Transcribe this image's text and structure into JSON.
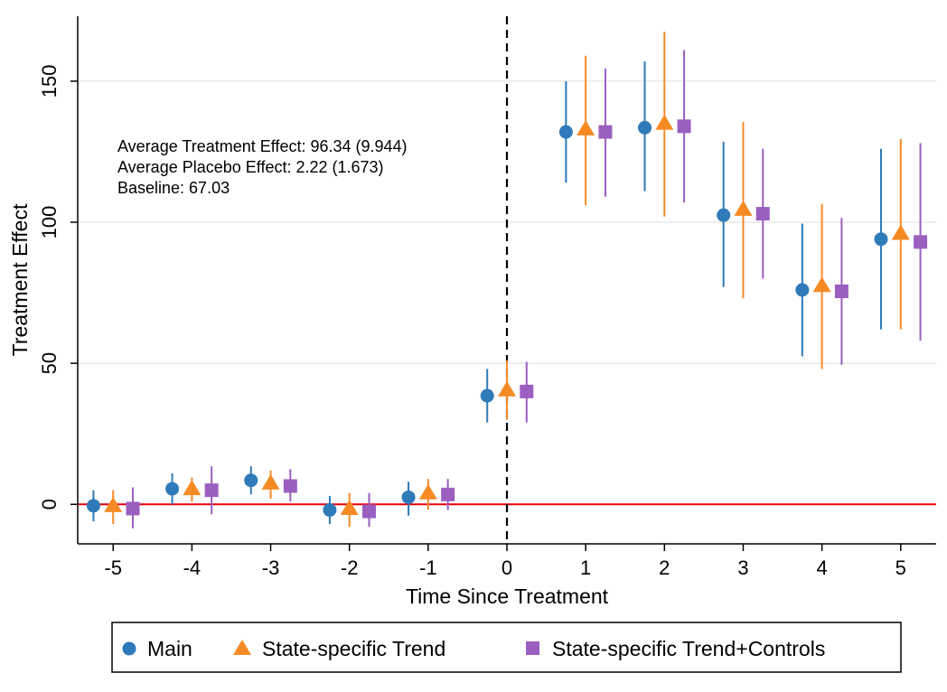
{
  "chart_data": {
    "type": "scatter",
    "xlabel": "Time Since Treatment",
    "ylabel": "Treatment Effect",
    "xlim": [
      -5.45,
      5.45
    ],
    "ylim": [
      -14,
      173
    ],
    "x_ticks": [
      "-5",
      "-4",
      "-3",
      "-2",
      "-1",
      "0",
      "1",
      "2",
      "3",
      "4",
      "5"
    ],
    "y_ticks": [
      "0",
      "50",
      "100",
      "150"
    ],
    "grid": "horizontal",
    "reference_hline": {
      "y": 0,
      "color": "#e8000b"
    },
    "reference_vline": {
      "x": 0,
      "style": "dashed"
    },
    "annotations": [
      "Average Treatment Effect:  96.34 (9.944)",
      "Average Placebo Effect:  2.22 (1.673)",
      "Baseline:  67.03"
    ],
    "legend_position": "bottom",
    "series": [
      {
        "name": "Main",
        "marker": "circle",
        "color": "#2f7ab8",
        "points": [
          {
            "x": -5.25,
            "y": -0.5,
            "lo": -6,
            "hi": 5
          },
          {
            "x": -4.25,
            "y": 5.5,
            "lo": 0,
            "hi": 11
          },
          {
            "x": -3.25,
            "y": 8.5,
            "lo": 3.5,
            "hi": 13.5
          },
          {
            "x": -2.25,
            "y": -2,
            "lo": -7,
            "hi": 3
          },
          {
            "x": -1.25,
            "y": 2.5,
            "lo": -4,
            "hi": 8
          },
          {
            "x": -0.25,
            "y": 38.5,
            "lo": 29,
            "hi": 48
          },
          {
            "x": 0.75,
            "y": 132,
            "lo": 114,
            "hi": 150
          },
          {
            "x": 1.75,
            "y": 133.5,
            "lo": 111,
            "hi": 157
          },
          {
            "x": 2.75,
            "y": 102.5,
            "lo": 77,
            "hi": 128.5
          },
          {
            "x": 3.75,
            "y": 76,
            "lo": 52.5,
            "hi": 99.5
          },
          {
            "x": 4.75,
            "y": 94,
            "lo": 62,
            "hi": 126
          }
        ]
      },
      {
        "name": "State-specific Trend",
        "marker": "triangle",
        "color": "#f58a24",
        "points": [
          {
            "x": -5,
            "y": -0.5,
            "lo": -7,
            "hi": 5
          },
          {
            "x": -4,
            "y": 5.5,
            "lo": 1,
            "hi": 9.5
          },
          {
            "x": -3,
            "y": 7.5,
            "lo": 2,
            "hi": 12
          },
          {
            "x": -2,
            "y": -1.5,
            "lo": -8,
            "hi": 4
          },
          {
            "x": -1,
            "y": 4,
            "lo": -2,
            "hi": 9
          },
          {
            "x": 0,
            "y": 40.5,
            "lo": 30,
            "hi": 51
          },
          {
            "x": 1,
            "y": 133,
            "lo": 106,
            "hi": 159
          },
          {
            "x": 2,
            "y": 135,
            "lo": 102,
            "hi": 167.5
          },
          {
            "x": 3,
            "y": 104.5,
            "lo": 73,
            "hi": 135.5
          },
          {
            "x": 4,
            "y": 77.5,
            "lo": 48,
            "hi": 106.5
          },
          {
            "x": 5,
            "y": 96,
            "lo": 62,
            "hi": 129.5
          }
        ]
      },
      {
        "name": "State-specific Trend+Controls",
        "marker": "square",
        "color": "#9b5fc0",
        "points": [
          {
            "x": -4.75,
            "y": -1.5,
            "lo": -8.5,
            "hi": 6
          },
          {
            "x": -3.75,
            "y": 5,
            "lo": -3.5,
            "hi": 13.5
          },
          {
            "x": -2.75,
            "y": 6.5,
            "lo": 1,
            "hi": 12.5
          },
          {
            "x": -1.75,
            "y": -2.5,
            "lo": -8,
            "hi": 4
          },
          {
            "x": -0.75,
            "y": 3.5,
            "lo": -2,
            "hi": 9
          },
          {
            "x": 0.25,
            "y": 40,
            "lo": 29,
            "hi": 50.5
          },
          {
            "x": 1.25,
            "y": 132,
            "lo": 109,
            "hi": 154.5
          },
          {
            "x": 2.25,
            "y": 134,
            "lo": 107,
            "hi": 161
          },
          {
            "x": 3.25,
            "y": 103,
            "lo": 80,
            "hi": 126
          },
          {
            "x": 4.25,
            "y": 75.5,
            "lo": 49.5,
            "hi": 101.5
          },
          {
            "x": 5.25,
            "y": 93,
            "lo": 58,
            "hi": 128
          }
        ]
      }
    ]
  }
}
